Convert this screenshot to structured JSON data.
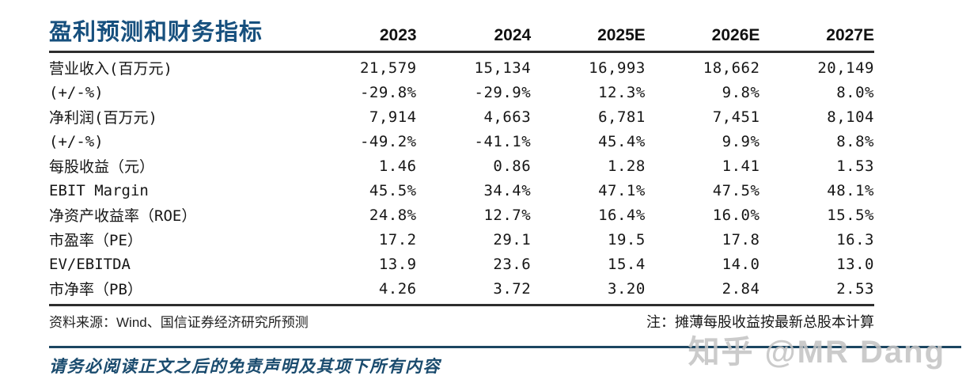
{
  "table": {
    "title": "盈利预测和财务指标",
    "columns": [
      "2023",
      "2024",
      "2025E",
      "2026E",
      "2027E"
    ],
    "rows": [
      {
        "label": "营业收入(百万元)",
        "values": [
          "21,579",
          "15,134",
          "16,993",
          "18,662",
          "20,149"
        ]
      },
      {
        "label": "(+/-%)",
        "values": [
          "-29.8%",
          "-29.9%",
          "12.3%",
          "9.8%",
          "8.0%"
        ]
      },
      {
        "label": "净利润(百万元)",
        "values": [
          "7,914",
          "4,663",
          "6,781",
          "7,451",
          "8,104"
        ]
      },
      {
        "label": "(+/-%)",
        "values": [
          "-49.2%",
          "-41.1%",
          "45.4%",
          "9.9%",
          "8.8%"
        ]
      },
      {
        "label": "每股收益（元）",
        "values": [
          "1.46",
          "0.86",
          "1.28",
          "1.41",
          "1.53"
        ]
      },
      {
        "label": "EBIT Margin",
        "values": [
          "45.5%",
          "34.4%",
          "47.1%",
          "47.5%",
          "48.1%"
        ]
      },
      {
        "label": "净资产收益率（ROE）",
        "values": [
          "24.8%",
          "12.7%",
          "16.4%",
          "16.0%",
          "15.5%"
        ]
      },
      {
        "label": "市盈率（PE）",
        "values": [
          "17.2",
          "29.1",
          "19.5",
          "17.8",
          "16.3"
        ]
      },
      {
        "label": "EV/EBITDA",
        "values": [
          "13.9",
          "23.6",
          "15.4",
          "14.0",
          "13.0"
        ]
      },
      {
        "label": "市净率（PB）",
        "values": [
          "4.26",
          "3.72",
          "3.20",
          "2.84",
          "2.53"
        ]
      }
    ]
  },
  "notes": {
    "source": "资料来源：Wind、国信证券经济研究所预测",
    "side": "注：摊薄每股收益按最新总股本计算"
  },
  "footer": {
    "disclaimer": "请务必阅读正文之后的免责声明及其项下所有内容"
  },
  "watermark": {
    "text": "知乎 @MR Dang"
  },
  "colors": {
    "title_blue": "#17507E",
    "table_rule_dark": "#2E2E2E",
    "footer_rule_navy": "#1C4661",
    "disclaimer_navy": "#1A4B6E",
    "watermark_gray": "#C4C4C4"
  }
}
